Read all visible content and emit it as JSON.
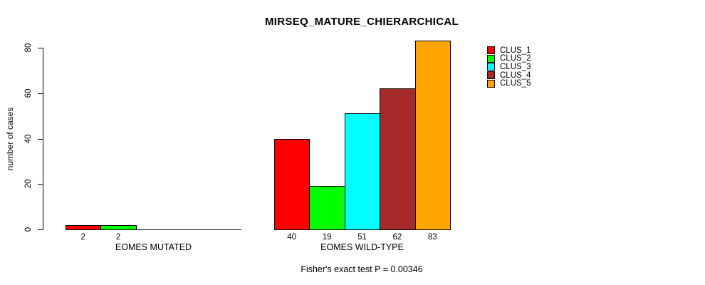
{
  "chart_data": {
    "type": "bar",
    "title": "MIRSEQ_MATURE_CHIERARCHICAL",
    "ylabel": "number of cases",
    "xlabel": "",
    "ylim": [
      0,
      80
    ],
    "yticks": [
      "0",
      "20",
      "40",
      "60",
      "80"
    ],
    "grid": false,
    "legend_position": "right",
    "legend": [
      {
        "name": "CLUS_1",
        "color": "#FF0000"
      },
      {
        "name": "CLUS_2",
        "color": "#00FF00"
      },
      {
        "name": "CLUS_3",
        "color": "#00FFFF"
      },
      {
        "name": "CLUS_4",
        "color": "#A52A2A"
      },
      {
        "name": "CLUS_5",
        "color": "#FFA500"
      }
    ],
    "groups": [
      {
        "label": "EOMES MUTATED",
        "slots": 5,
        "bars": [
          {
            "series": "CLUS_1",
            "value": 2,
            "color": "#FF0000"
          },
          {
            "series": "CLUS_2",
            "value": 2,
            "color": "#00FF00"
          }
        ]
      },
      {
        "label": "EOMES WILD-TYPE",
        "slots": 5,
        "bars": [
          {
            "series": "CLUS_1",
            "value": 40,
            "color": "#FF0000"
          },
          {
            "series": "CLUS_2",
            "value": 19,
            "color": "#00FF00"
          },
          {
            "series": "CLUS_3",
            "value": 51,
            "color": "#00FFFF"
          },
          {
            "series": "CLUS_4",
            "value": 62,
            "color": "#A52A2A"
          },
          {
            "series": "CLUS_5",
            "value": 83,
            "color": "#FFA500"
          }
        ]
      }
    ],
    "annotation": "Fisher's exact test P = 0.00346"
  }
}
